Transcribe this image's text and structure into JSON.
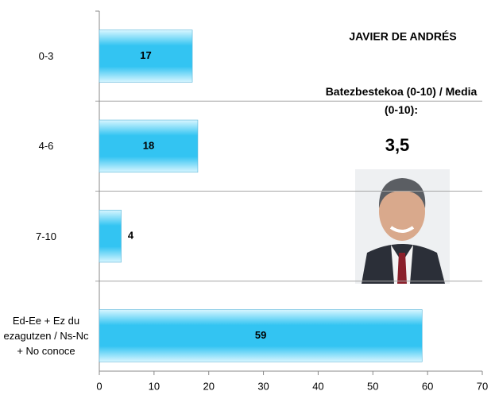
{
  "chart_data": {
    "type": "bar",
    "orientation": "horizontal",
    "title": "JAVIER DE ANDRÉS",
    "subtitle": "Batezbestekoa (0-10) / Media (0-10):",
    "annotation": "3,5",
    "categories": [
      "0-3",
      "4-6",
      "7-10",
      "Ed-Ee + Ez du ezagutzen / Ns-Nc + No conoce"
    ],
    "values": [
      17,
      18,
      4,
      59
    ],
    "color": "#33c4f2",
    "xlim": [
      0,
      70
    ],
    "xticks": [
      0,
      10,
      20,
      30,
      40,
      50,
      60,
      70
    ]
  }
}
